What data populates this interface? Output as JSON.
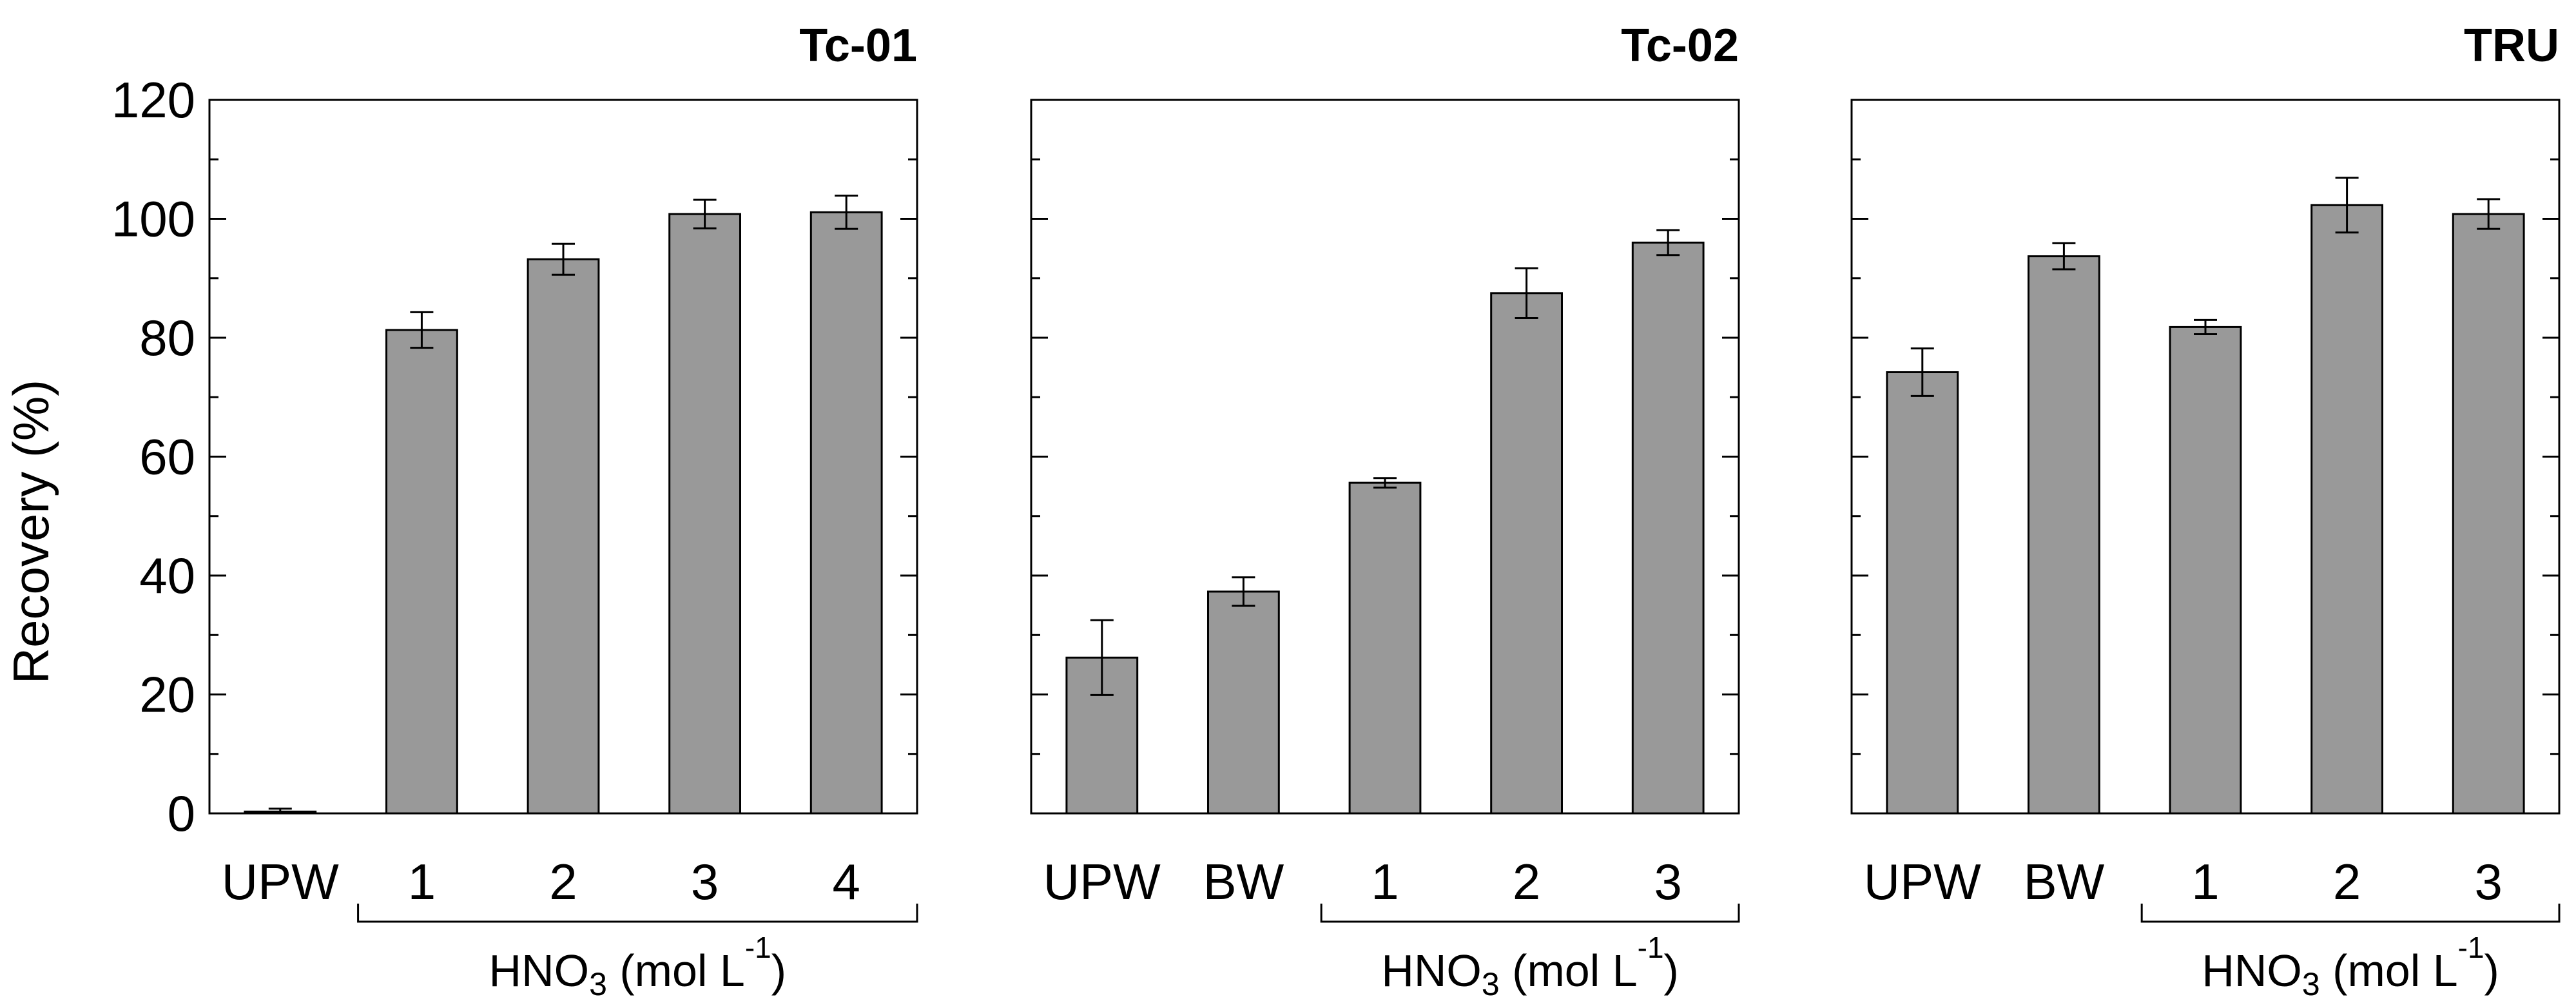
{
  "chart_data": {
    "type": "bar",
    "ylabel": "Recovery (%)",
    "ylim": [
      0,
      120
    ],
    "y_ticks": [
      "0",
      "20",
      "40",
      "60",
      "80",
      "100",
      "120"
    ],
    "bar_color": "#999999",
    "panels": [
      {
        "title": "Tc-01",
        "categories": [
          "UPW",
          "1",
          "2",
          "3",
          "4"
        ],
        "values": [
          0.3,
          81.3,
          93.2,
          100.8,
          101.1
        ],
        "errors": [
          0.5,
          3.0,
          2.6,
          2.4,
          2.8
        ],
        "group": {
          "start_index": 1,
          "end_index": 4,
          "label_main": "HNO",
          "label_sub": "3",
          "label_mid": " (mol L",
          "label_sup": "-1",
          "label_end": ")"
        }
      },
      {
        "title": "Tc-02",
        "categories": [
          "UPW",
          "BW",
          "1",
          "2",
          "3"
        ],
        "values": [
          26.2,
          37.3,
          55.6,
          87.5,
          96.0
        ],
        "errors": [
          6.3,
          2.4,
          0.8,
          4.2,
          2.1
        ],
        "group": {
          "start_index": 2,
          "end_index": 4,
          "label_main": "HNO",
          "label_sub": "3",
          "label_mid": " (mol L",
          "label_sup": "-1",
          "label_end": ")"
        }
      },
      {
        "title": "TRU",
        "categories": [
          "UPW",
          "BW",
          "1",
          "2",
          "3"
        ],
        "values": [
          74.2,
          93.7,
          81.8,
          102.3,
          100.8
        ],
        "errors": [
          4.0,
          2.2,
          1.2,
          4.6,
          2.5
        ],
        "group": {
          "start_index": 2,
          "end_index": 4,
          "label_main": "HNO",
          "label_sub": "3",
          "label_mid": " (mol L",
          "label_sup": "-1",
          "label_end": ")"
        }
      }
    ]
  }
}
